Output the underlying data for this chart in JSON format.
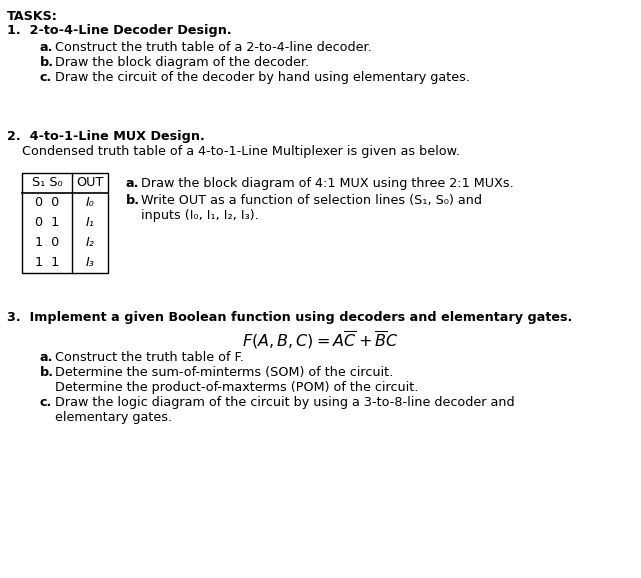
{
  "background_color": "#ffffff",
  "fig_width": 6.41,
  "fig_height": 5.78,
  "tasks_label": "TASKS:",
  "task1_title": "1.  2-to-4-Line Decoder Design.",
  "task1_a": "Construct the truth table of a 2-to-4-line decoder.",
  "task1_b": "Draw the block diagram of the decoder.",
  "task1_c": "Draw the circuit of the decoder by hand using elementary gates.",
  "task2_title": "2.  4-to-1-Line MUX Design.",
  "task2_intro": "Condensed truth table of a 4-to-1-Line Multiplexer is given as below.",
  "task2_a": "Draw the block diagram of 4:1 MUX using three 2:1 MUXs.",
  "task2_b_line1": "Write OUT as a function of selection lines (S₁, S₀) and",
  "task2_b_line2": "inputs (I₀, I₁, I₂, I₃).",
  "task3_title": "3.  Implement a given Boolean function using decoders and elementary gates.",
  "task3_a": "Construct the truth table of F.",
  "task3_b_line1": "Determine the sum-of-minterms (SOM) of the circuit.",
  "task3_b_line2": "Determine the product-of-maxterms (POM) of the circuit.",
  "task3_c_line1": "Draw the logic diagram of the circuit by using a 3-to-8-line decoder and",
  "task3_c_line2": "elementary gates.",
  "table_s_vals": [
    "0  0",
    "0  1",
    "1  0",
    "1  1"
  ],
  "table_out_vals": [
    "I₀",
    "I₁",
    "I₂",
    "I₃"
  ]
}
